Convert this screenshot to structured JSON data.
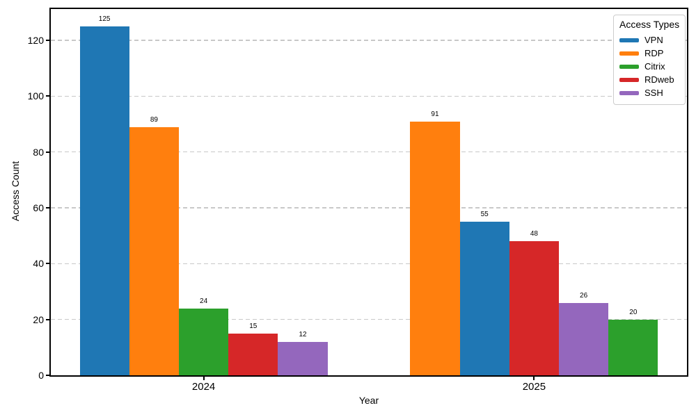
{
  "chart_data": {
    "type": "bar",
    "title": "",
    "xlabel": "Year",
    "ylabel": "Access Count",
    "categories": [
      "2024",
      "2025"
    ],
    "series": [
      {
        "name": "VPN",
        "color": "#1f77b4",
        "values": [
          125,
          55
        ]
      },
      {
        "name": "RDP",
        "color": "#ff7f0e",
        "values": [
          89,
          91
        ]
      },
      {
        "name": "Citrix",
        "color": "#2ca02c",
        "values": [
          24,
          20
        ]
      },
      {
        "name": "RDweb",
        "color": "#d62728",
        "values": [
          15,
          48
        ]
      },
      {
        "name": "SSH",
        "color": "#9467bd",
        "values": [
          12,
          26
        ]
      }
    ],
    "bar_order_within_group": "descending_by_value",
    "value_labels_shown": true,
    "yticks": [
      0,
      20,
      40,
      60,
      80,
      100,
      120
    ],
    "ylim": [
      0,
      131.25
    ],
    "grid": {
      "axis": "y",
      "style": "dashed",
      "color": "#c8c8c8"
    },
    "legend": {
      "title": "Access Types",
      "position": "upper right",
      "entries": [
        "VPN",
        "RDP",
        "Citrix",
        "RDweb",
        "SSH"
      ]
    }
  }
}
